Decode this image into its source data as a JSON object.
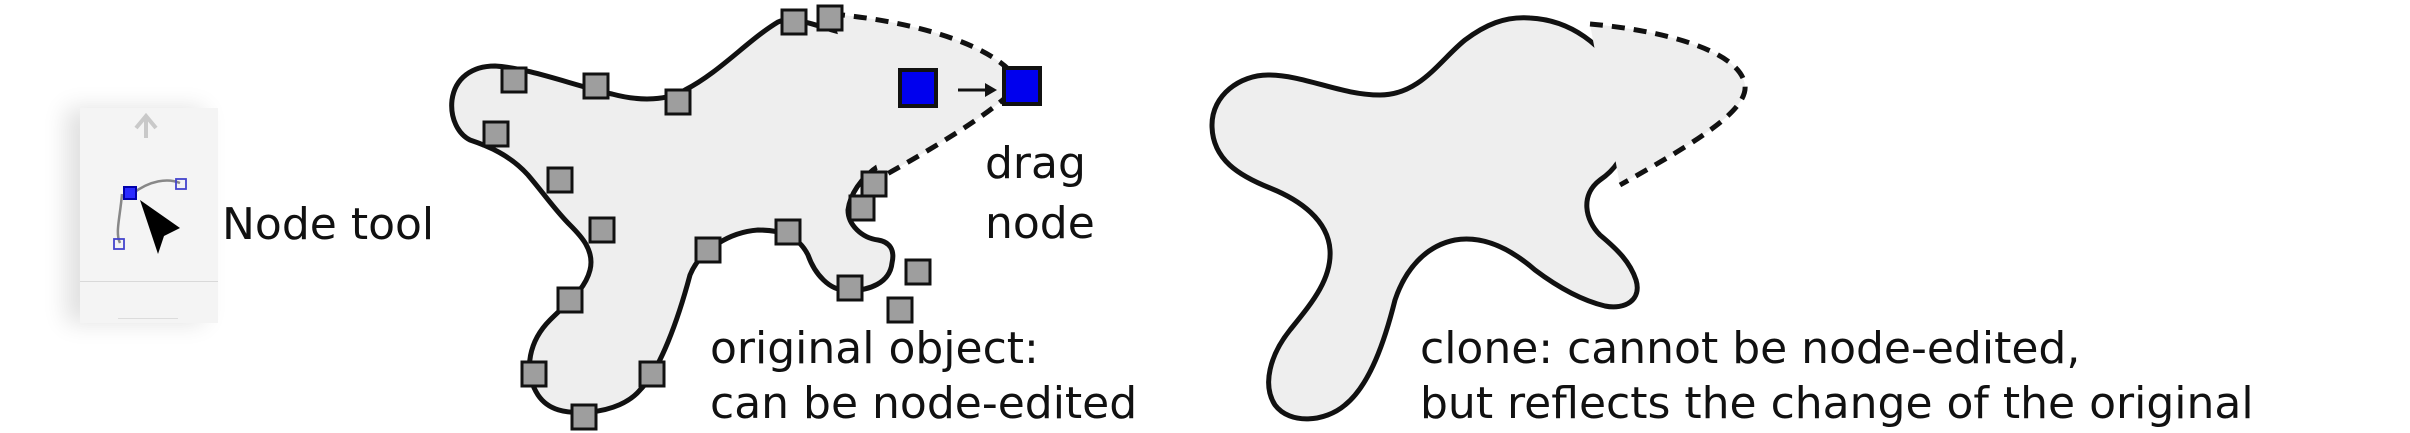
{
  "toolbar": {
    "tool_icon": "node-tool-icon",
    "partial_icon": "arrow-up-icon",
    "tool_label": "Node tool"
  },
  "original": {
    "drag_label_line1": "drag",
    "drag_label_line2": "node",
    "caption_line1": "original object:",
    "caption_line2": "can be node-edited"
  },
  "clone": {
    "caption_line1": "clone: cannot be node-edited,",
    "caption_line2": "but reflects the change of the original"
  },
  "colors": {
    "shape_fill": "#eeeeee",
    "outline": "#111111",
    "node_gray": "#9e9e9e",
    "node_selected": "#0000ee"
  }
}
